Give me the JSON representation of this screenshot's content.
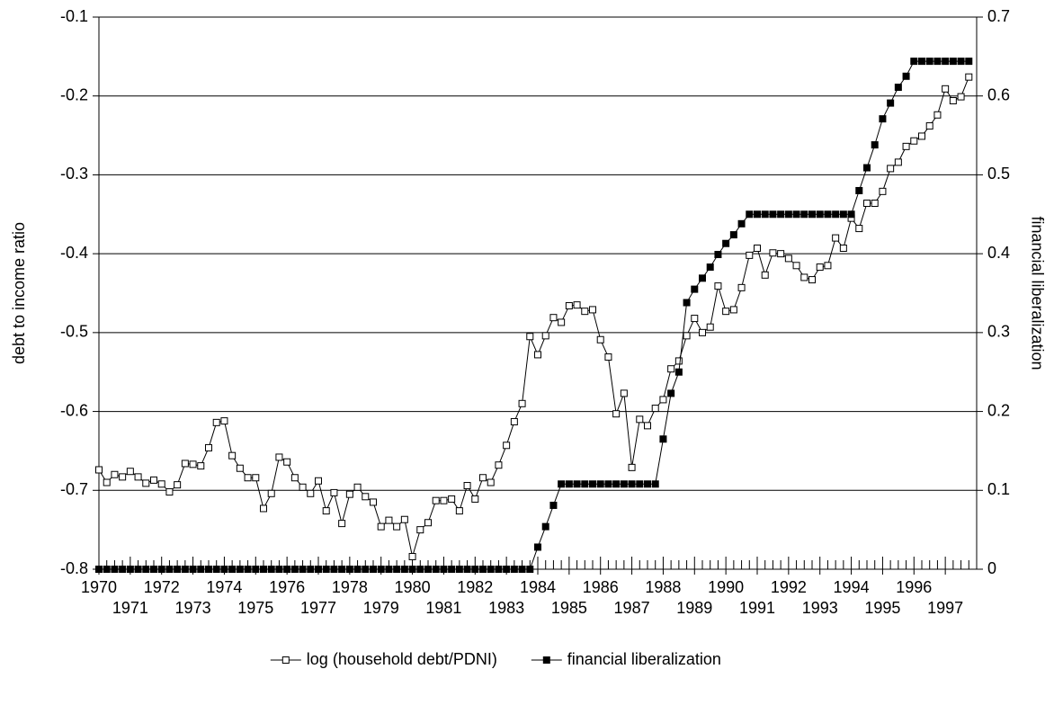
{
  "chart_data": {
    "type": "line",
    "categories": [
      "1970",
      null,
      null,
      null,
      "1971",
      null,
      null,
      null,
      "1972",
      null,
      null,
      null,
      "1973",
      null,
      null,
      null,
      "1974",
      null,
      null,
      null,
      "1975",
      null,
      null,
      null,
      "1976",
      null,
      null,
      null,
      "1977",
      null,
      null,
      null,
      "1978",
      null,
      null,
      null,
      "1979",
      null,
      null,
      null,
      "1980",
      null,
      null,
      null,
      "1981",
      null,
      null,
      null,
      "1982",
      null,
      null,
      null,
      "1983",
      null,
      null,
      null,
      "1984",
      null,
      null,
      null,
      "1985",
      null,
      null,
      null,
      "1986",
      null,
      null,
      null,
      "1987",
      null,
      null,
      null,
      "1988",
      null,
      null,
      null,
      "1989",
      null,
      null,
      null,
      "1990",
      null,
      null,
      null,
      "1991",
      null,
      null,
      null,
      "1992",
      null,
      null,
      null,
      "1993",
      null,
      null,
      null,
      "1994",
      null,
      null,
      null,
      "1995",
      null,
      null,
      null,
      "1996",
      null,
      null,
      null,
      "1997",
      null,
      null,
      null
    ],
    "series": [
      {
        "name": "log (household debt/PDNI)",
        "color": "#000000",
        "marker_fill": "#ffffff",
        "axis": "y",
        "values": [
          -0.674,
          -0.69,
          -0.68,
          -0.683,
          -0.676,
          -0.683,
          -0.691,
          -0.687,
          -0.692,
          -0.702,
          -0.693,
          -0.666,
          -0.667,
          -0.669,
          -0.646,
          -0.614,
          -0.612,
          -0.656,
          -0.672,
          -0.684,
          -0.684,
          -0.723,
          -0.704,
          -0.658,
          -0.664,
          -0.684,
          -0.696,
          -0.704,
          -0.688,
          -0.726,
          -0.703,
          -0.742,
          -0.705,
          -0.696,
          -0.708,
          -0.715,
          -0.746,
          -0.738,
          -0.746,
          -0.737,
          -0.784,
          -0.75,
          -0.741,
          -0.713,
          -0.713,
          -0.711,
          -0.726,
          -0.694,
          -0.711,
          -0.684,
          -0.69,
          -0.668,
          -0.643,
          -0.613,
          -0.59,
          -0.505,
          -0.528,
          -0.504,
          -0.481,
          -0.487,
          -0.466,
          -0.465,
          -0.473,
          -0.471,
          -0.509,
          -0.531,
          -0.603,
          -0.577,
          -0.671,
          -0.61,
          -0.618,
          -0.596,
          -0.585,
          -0.546,
          -0.536,
          -0.504,
          -0.482,
          -0.5,
          -0.493,
          -0.441,
          -0.473,
          -0.471,
          -0.443,
          -0.402,
          -0.393,
          -0.427,
          -0.399,
          -0.4,
          -0.406,
          -0.415,
          -0.43,
          -0.433,
          -0.417,
          -0.415,
          -0.38,
          -0.393,
          -0.355,
          -0.368,
          -0.336,
          -0.336,
          -0.321,
          -0.292,
          -0.284,
          -0.264,
          -0.257,
          -0.251,
          -0.238,
          -0.224,
          -0.191,
          -0.206,
          -0.201,
          -0.176
        ]
      },
      {
        "name": "financial liberalization",
        "color": "#000000",
        "marker_fill": "#000000",
        "axis": "y2",
        "values": [
          0,
          0,
          0,
          0,
          0,
          0,
          0,
          0,
          0,
          0,
          0,
          0,
          0,
          0,
          0,
          0,
          0,
          0,
          0,
          0,
          0,
          0,
          0,
          0,
          0,
          0,
          0,
          0,
          0,
          0,
          0,
          0,
          0,
          0,
          0,
          0,
          0,
          0,
          0,
          0,
          0,
          0,
          0,
          0,
          0,
          0,
          0,
          0,
          0,
          0,
          0,
          0,
          0,
          0,
          0,
          0,
          0.028,
          0.054,
          0.081,
          0.108,
          0.108,
          0.108,
          0.108,
          0.108,
          0.108,
          0.108,
          0.108,
          0.108,
          0.108,
          0.108,
          0.108,
          0.108,
          0.165,
          0.223,
          0.25,
          0.338,
          0.355,
          0.369,
          0.383,
          0.399,
          0.413,
          0.424,
          0.438,
          0.45,
          0.45,
          0.45,
          0.45,
          0.45,
          0.45,
          0.45,
          0.45,
          0.45,
          0.45,
          0.45,
          0.45,
          0.45,
          0.45,
          0.48,
          0.509,
          0.538,
          0.571,
          0.591,
          0.611,
          0.625,
          0.644,
          0.644,
          0.644,
          0.644,
          0.644,
          0.644,
          0.644,
          0.644
        ]
      }
    ],
    "y_label": "debt to income ratio",
    "y2_label": "financial liberalization",
    "ylim": [
      -0.8,
      -0.1
    ],
    "yticks": [
      -0.8,
      -0.7,
      -0.6,
      -0.5,
      -0.4,
      -0.3,
      -0.2,
      -0.1
    ],
    "y2lim": [
      0,
      0.7
    ],
    "y2ticks": [
      0,
      0.1,
      0.2,
      0.3,
      0.4,
      0.5,
      0.6,
      0.7
    ],
    "grid": true,
    "legend": "bottom"
  }
}
